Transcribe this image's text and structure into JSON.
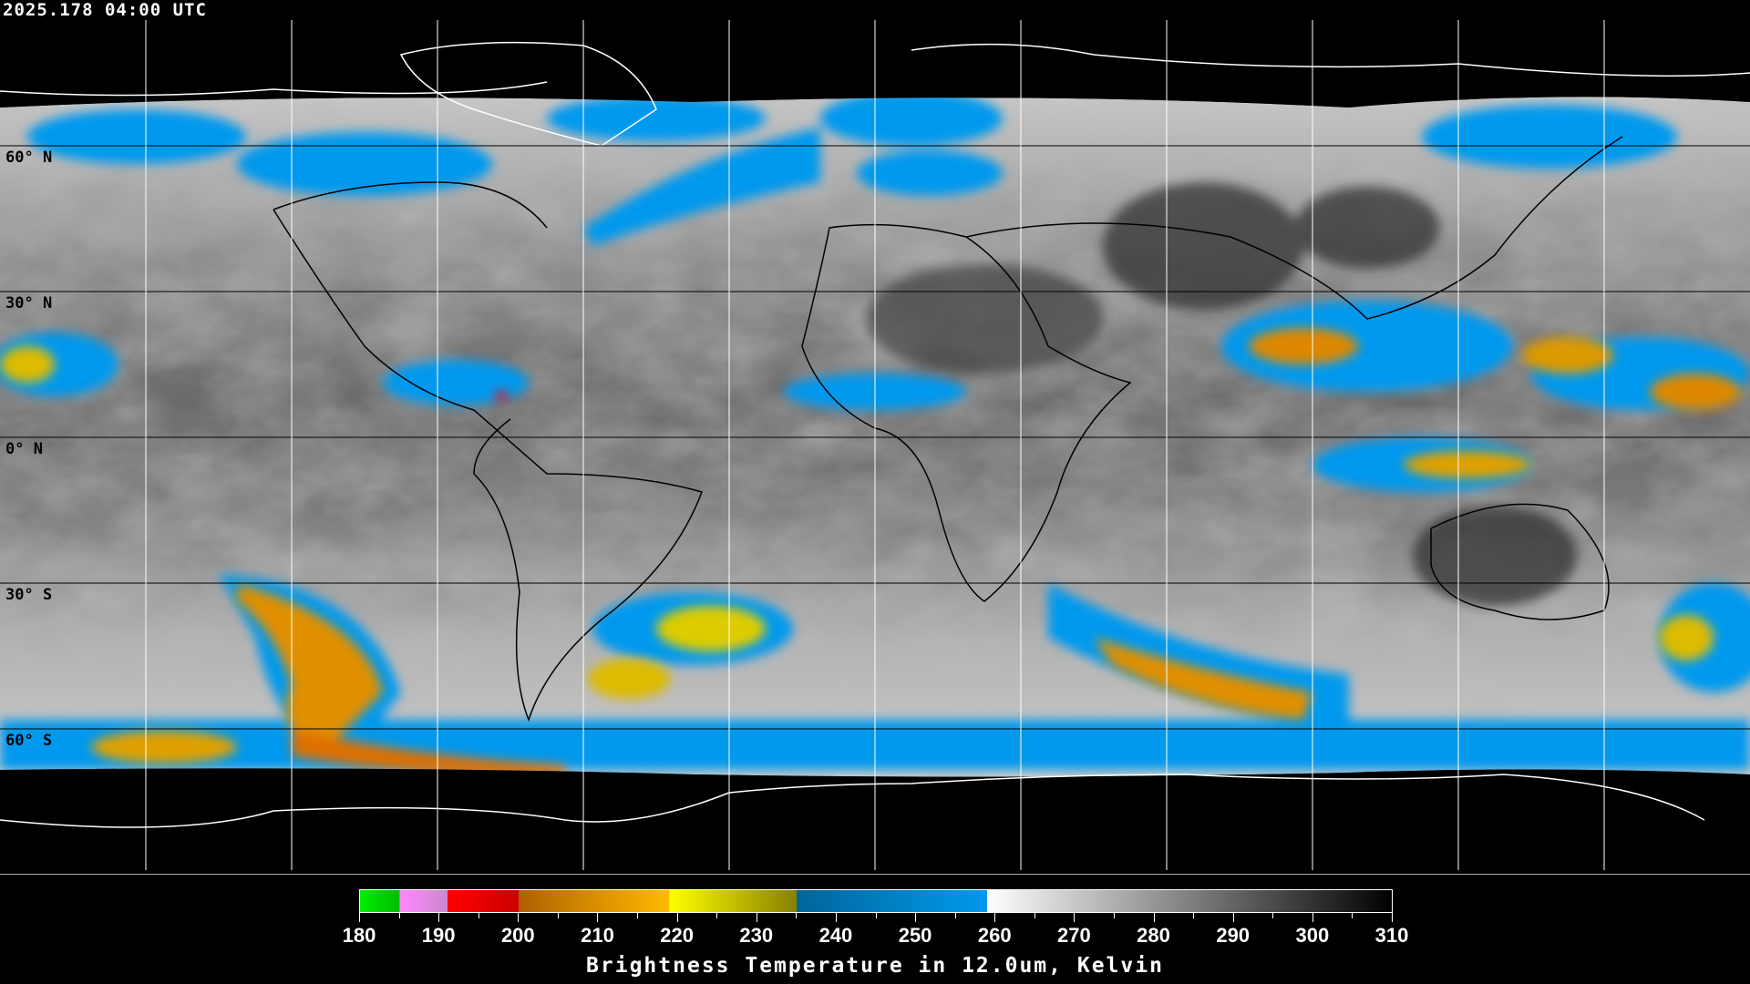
{
  "timestamp": "2025.178 04:00 UTC",
  "lat_labels": [
    "60° N",
    "30° N",
    "0° N",
    "30° S",
    "60° S"
  ],
  "colorbar": {
    "title": "Brightness Temperature in 12.0um, Kelvin",
    "ticks": [
      "180",
      "190",
      "200",
      "210",
      "220",
      "230",
      "240",
      "250",
      "260",
      "270",
      "280",
      "290",
      "300",
      "310"
    ],
    "range": [
      180,
      310
    ],
    "segments": [
      {
        "from": 180,
        "to": 185,
        "colors": [
          "#00ee00",
          "#00bb00"
        ]
      },
      {
        "from": 185,
        "to": 191,
        "colors": [
          "#ff88ff",
          "#cc88cc"
        ]
      },
      {
        "from": 191,
        "to": 200,
        "colors": [
          "#ff0000",
          "#cc0000"
        ]
      },
      {
        "from": 200,
        "to": 219,
        "colors": [
          "#b06000",
          "#ffbb00"
        ]
      },
      {
        "from": 219,
        "to": 235,
        "colors": [
          "#ffff00",
          "#888000"
        ]
      },
      {
        "from": 235,
        "to": 259,
        "colors": [
          "#006699",
          "#0099ee"
        ]
      },
      {
        "from": 259,
        "to": 310,
        "colors": [
          "#ffffff",
          "#000000"
        ]
      }
    ]
  }
}
